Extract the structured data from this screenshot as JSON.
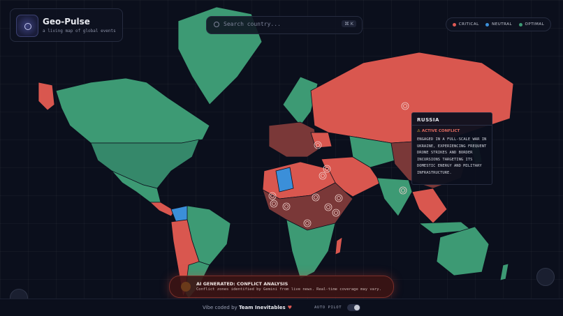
{
  "header": {
    "title": "Geo-Pulse",
    "subtitle": "a living map of global events"
  },
  "search": {
    "placeholder": "Search country...",
    "shortcut": "⌘ K"
  },
  "legend": [
    {
      "label": "CRITICAL",
      "color": "#e05a55"
    },
    {
      "label": "NEUTRAL",
      "color": "#3b8fd9"
    },
    {
      "label": "OPTIMAL",
      "color": "#3d9a74"
    }
  ],
  "tooltip": {
    "country": "RUSSIA",
    "status": "ACTIVE CONFLICT",
    "description": "ENGAGED IN A FULL-SCALE WAR IN UKRAINE, EXPERIENCING FREQUENT DRONE STRIKES AND BORDER INCURSIONS TARGETING ITS DOMESTIC ENERGY AND MILITARY INFRASTRUCTURE."
  },
  "banner": {
    "title": "AI GENERATED: CONFLICT ANALYSIS",
    "text": "Conflict zones identified by Gemini from live news. Real-time coverage may vary."
  },
  "footer": {
    "prefix": "Vibe coded by",
    "team": "Team Inevitables",
    "toggle": "AUTO PILOT"
  }
}
